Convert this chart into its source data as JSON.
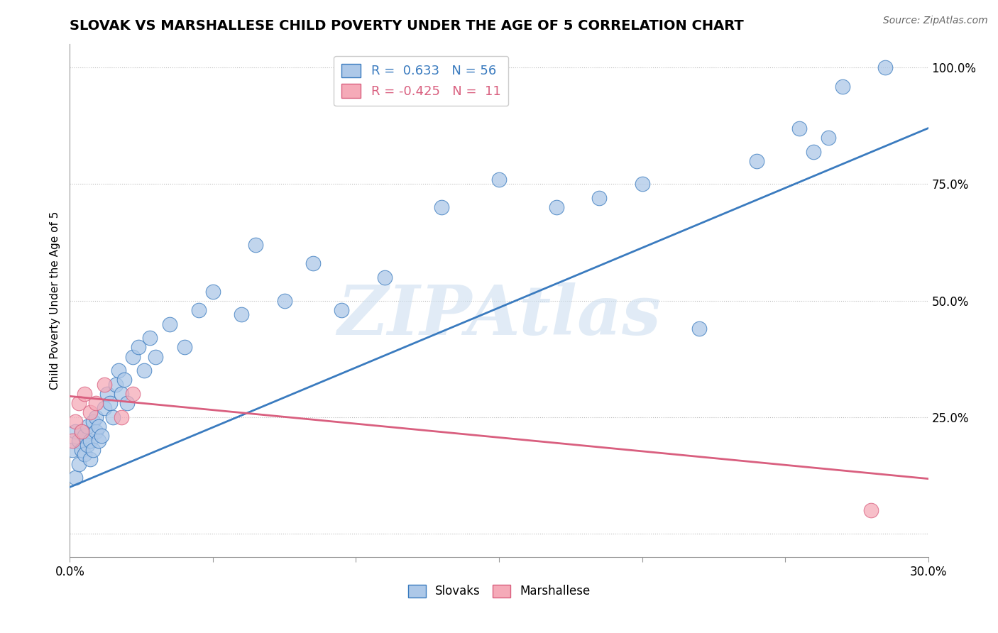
{
  "title": "SLOVAK VS MARSHALLESE CHILD POVERTY UNDER THE AGE OF 5 CORRELATION CHART",
  "source": "Source: ZipAtlas.com",
  "ylabel": "Child Poverty Under the Age of 5",
  "xlim": [
    0.0,
    0.3
  ],
  "ylim": [
    -0.05,
    1.05
  ],
  "xticks": [
    0.0,
    0.05,
    0.1,
    0.15,
    0.2,
    0.25,
    0.3
  ],
  "xticklabels": [
    "0.0%",
    "",
    "",
    "",
    "",
    "",
    "30.0%"
  ],
  "ytick_positions": [
    0.0,
    0.25,
    0.5,
    0.75,
    1.0
  ],
  "yticklabels": [
    "",
    "25.0%",
    "50.0%",
    "75.0%",
    "100.0%"
  ],
  "slovak_R": 0.633,
  "slovak_N": 56,
  "marshallese_R": -0.425,
  "marshallese_N": 11,
  "slovak_color": "#adc8e8",
  "marshallese_color": "#f5aab8",
  "slovak_line_color": "#3a7bbf",
  "marshallese_line_color": "#d95f7f",
  "watermark": "ZIPAtlas",
  "watermark_color": "#cddff0",
  "title_fontsize": 14,
  "source_fontsize": 10,
  "legend_fontsize": 13,
  "slovak_x": [
    0.001,
    0.002,
    0.002,
    0.003,
    0.003,
    0.004,
    0.004,
    0.005,
    0.005,
    0.006,
    0.006,
    0.007,
    0.007,
    0.008,
    0.008,
    0.009,
    0.009,
    0.01,
    0.01,
    0.011,
    0.012,
    0.013,
    0.014,
    0.015,
    0.016,
    0.017,
    0.018,
    0.019,
    0.02,
    0.022,
    0.024,
    0.026,
    0.028,
    0.03,
    0.035,
    0.04,
    0.045,
    0.05,
    0.06,
    0.065,
    0.075,
    0.085,
    0.095,
    0.11,
    0.13,
    0.15,
    0.17,
    0.185,
    0.2,
    0.22,
    0.24,
    0.255,
    0.26,
    0.265,
    0.27,
    0.285
  ],
  "slovak_y": [
    0.18,
    0.22,
    0.12,
    0.2,
    0.15,
    0.18,
    0.22,
    0.17,
    0.21,
    0.19,
    0.23,
    0.16,
    0.2,
    0.24,
    0.18,
    0.22,
    0.25,
    0.2,
    0.23,
    0.21,
    0.27,
    0.3,
    0.28,
    0.25,
    0.32,
    0.35,
    0.3,
    0.33,
    0.28,
    0.38,
    0.4,
    0.35,
    0.42,
    0.38,
    0.45,
    0.4,
    0.48,
    0.52,
    0.47,
    0.62,
    0.5,
    0.58,
    0.48,
    0.55,
    0.7,
    0.76,
    0.7,
    0.72,
    0.75,
    0.44,
    0.8,
    0.87,
    0.82,
    0.85,
    0.96,
    1.0
  ],
  "marshallese_x": [
    0.001,
    0.002,
    0.003,
    0.004,
    0.005,
    0.007,
    0.009,
    0.012,
    0.018,
    0.022,
    0.28
  ],
  "marshallese_y": [
    0.2,
    0.24,
    0.28,
    0.22,
    0.3,
    0.26,
    0.28,
    0.32,
    0.25,
    0.3,
    0.05
  ],
  "sk_line_x0": 0.0,
  "sk_line_y0": 0.1,
  "sk_line_x1": 0.3,
  "sk_line_y1": 0.87,
  "ma_line_x0": 0.0,
  "ma_line_y0": 0.295,
  "ma_line_x1": 0.3,
  "ma_line_y1": 0.118
}
